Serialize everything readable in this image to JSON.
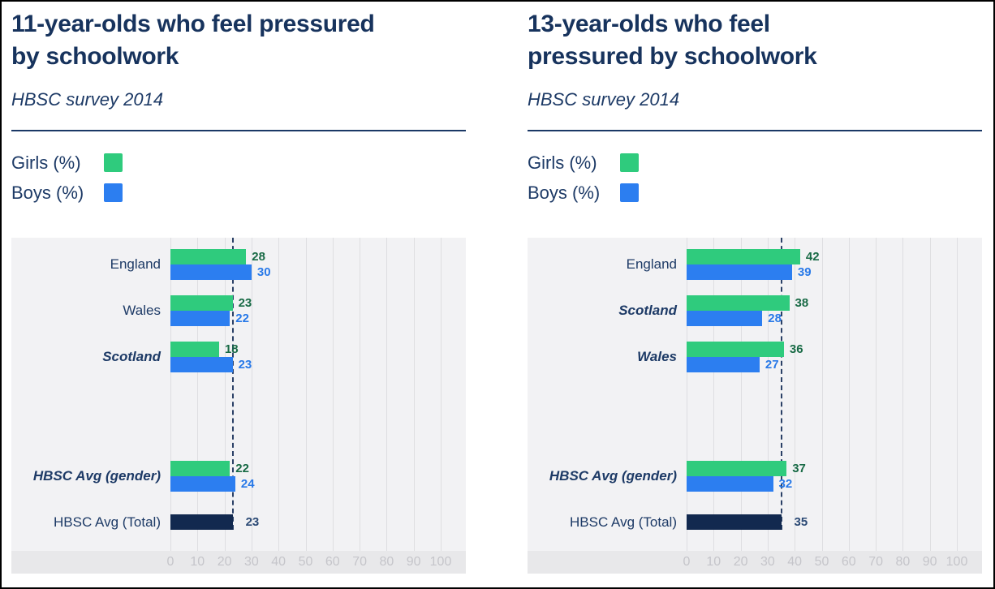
{
  "colors": {
    "title_text": "#17335d",
    "body_text": "#1d3a66",
    "girls_bar": "#2fcb7d",
    "boys_bar": "#2c7ef0",
    "total_bar": "#12294f",
    "girls_value_label": "#186a45",
    "boys_value_label": "#2879e8",
    "total_value_label": "#2c4a75",
    "average_line": "#2a4066",
    "plot_background": "#f2f2f4",
    "axis_strip_background": "#e8e8ea",
    "gridline": "#dedee1",
    "axis_tick_label": "#c5c5ca",
    "divider": "#1b3866",
    "page_border": "#000000"
  },
  "charts": [
    {
      "title": "11-year-olds who feel pressured\nby schoolwork",
      "subtitle": "HBSC survey 2014",
      "legend": {
        "girls_label": "Girls (%)",
        "boys_label": "Boys (%)"
      },
      "chart_data": {
        "type": "bar",
        "orientation": "horizontal",
        "xlim": [
          0,
          100
        ],
        "x_ticks": [
          0,
          10,
          20,
          30,
          40,
          50,
          60,
          70,
          80,
          90,
          100
        ],
        "grid": true,
        "average_line_value": 23,
        "series_names": [
          "Girls (%)",
          "Boys (%)"
        ],
        "rows": [
          {
            "label": "England",
            "emphasized": false,
            "girls": 28,
            "boys": 30
          },
          {
            "label": "Wales",
            "emphasized": false,
            "girls": 23,
            "boys": 22
          },
          {
            "label": "Scotland",
            "emphasized": true,
            "girls": 18,
            "boys": 23
          },
          {
            "label": "HBSC Avg (gender)",
            "emphasized": true,
            "girls": 22,
            "boys": 24
          },
          {
            "label": "HBSC Avg (Total)",
            "emphasized": false,
            "total": 23
          }
        ]
      }
    },
    {
      "title": "13-year-olds who feel\npressured by schoolwork",
      "subtitle": "HBSC survey 2014",
      "legend": {
        "girls_label": "Girls (%)",
        "boys_label": "Boys (%)"
      },
      "chart_data": {
        "type": "bar",
        "orientation": "horizontal",
        "xlim": [
          0,
          100
        ],
        "x_ticks": [
          0,
          10,
          20,
          30,
          40,
          50,
          60,
          70,
          80,
          90,
          100
        ],
        "grid": true,
        "average_line_value": 35,
        "series_names": [
          "Girls (%)",
          "Boys (%)"
        ],
        "rows": [
          {
            "label": "England",
            "emphasized": false,
            "girls": 42,
            "boys": 39
          },
          {
            "label": "Scotland",
            "emphasized": true,
            "girls": 38,
            "boys": 28
          },
          {
            "label": "Wales",
            "emphasized": true,
            "girls": 36,
            "boys": 27
          },
          {
            "label": "HBSC Avg (gender)",
            "emphasized": true,
            "girls": 37,
            "boys": 32
          },
          {
            "label": "HBSC Avg (Total)",
            "emphasized": false,
            "total": 35
          }
        ]
      }
    }
  ]
}
